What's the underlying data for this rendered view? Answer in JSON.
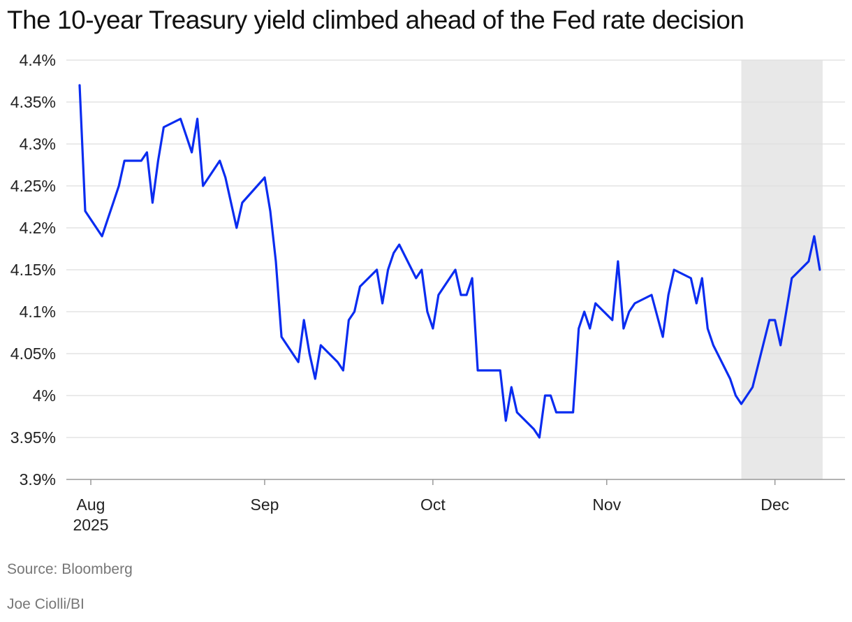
{
  "title": "The 10-year Treasury yield climbed ahead of the Fed rate decision",
  "source": "Source: Bloomberg",
  "credit": "Joe Ciolli/BI",
  "colors": {
    "line": "#0a2cf0",
    "grid": "#dddddd",
    "shade": "#e8e8e8",
    "axis": "#999999"
  },
  "chart_data": {
    "type": "line",
    "title": "The 10-year Treasury yield climbed ahead of the Fed rate decision",
    "xlabel": "",
    "ylabel": "",
    "ylim": [
      3.9,
      4.4
    ],
    "yticks": [
      3.9,
      3.95,
      4.0,
      4.05,
      4.1,
      4.15,
      4.2,
      4.25,
      4.3,
      4.35,
      4.4
    ],
    "ytick_labels": [
      "3.9%",
      "3.95%",
      "4%",
      "4.05%",
      "4.1%",
      "4.15%",
      "4.2%",
      "4.25%",
      "4.3%",
      "4.35%",
      "4.4%"
    ],
    "x_range": [
      "2025-07-31",
      "2025-12-12"
    ],
    "xticks": [
      {
        "date": "2025-08-01",
        "label": "Aug",
        "sublabel": "2025"
      },
      {
        "date": "2025-09-01",
        "label": "Sep",
        "sublabel": ""
      },
      {
        "date": "2025-10-01",
        "label": "Oct",
        "sublabel": ""
      },
      {
        "date": "2025-11-01",
        "label": "Nov",
        "sublabel": ""
      },
      {
        "date": "2025-12-01",
        "label": "Dec",
        "sublabel": ""
      }
    ],
    "shaded_region": [
      "2025-11-26",
      "2025-12-10"
    ],
    "grid": true,
    "series": [
      {
        "name": "10-year Treasury yield",
        "x": [
          "2025-07-31",
          "2025-08-01",
          "2025-08-04",
          "2025-08-05",
          "2025-08-06",
          "2025-08-07",
          "2025-08-08",
          "2025-08-11",
          "2025-08-12",
          "2025-08-13",
          "2025-08-14",
          "2025-08-15",
          "2025-08-18",
          "2025-08-19",
          "2025-08-20",
          "2025-08-21",
          "2025-08-22",
          "2025-08-25",
          "2025-08-26",
          "2025-08-27",
          "2025-08-28",
          "2025-08-29",
          "2025-09-02",
          "2025-09-03",
          "2025-09-04",
          "2025-09-05",
          "2025-09-08",
          "2025-09-09",
          "2025-09-10",
          "2025-09-11",
          "2025-09-12",
          "2025-09-15",
          "2025-09-16",
          "2025-09-17",
          "2025-09-18",
          "2025-09-19",
          "2025-09-22",
          "2025-09-23",
          "2025-09-24",
          "2025-09-25",
          "2025-09-26",
          "2025-09-29",
          "2025-09-30",
          "2025-10-01",
          "2025-10-02",
          "2025-10-03",
          "2025-10-06",
          "2025-10-07",
          "2025-10-08",
          "2025-10-09",
          "2025-10-10",
          "2025-10-14",
          "2025-10-15",
          "2025-10-16",
          "2025-10-17",
          "2025-10-20",
          "2025-10-21",
          "2025-10-22",
          "2025-10-23",
          "2025-10-24",
          "2025-10-27",
          "2025-10-28",
          "2025-10-29",
          "2025-10-30",
          "2025-10-31",
          "2025-11-03",
          "2025-11-04",
          "2025-11-05",
          "2025-11-06",
          "2025-11-07",
          "2025-11-10",
          "2025-11-12",
          "2025-11-13",
          "2025-11-14",
          "2025-11-17",
          "2025-11-18",
          "2025-11-19",
          "2025-11-20",
          "2025-11-21",
          "2025-11-24",
          "2025-11-25",
          "2025-11-26",
          "2025-11-28",
          "2025-12-01",
          "2025-12-02",
          "2025-12-03",
          "2025-12-04",
          "2025-12-05",
          "2025-12-08",
          "2025-12-09",
          "2025-12-10"
        ],
        "values": [
          4.37,
          4.22,
          4.19,
          4.21,
          4.23,
          4.25,
          4.28,
          4.28,
          4.29,
          4.23,
          4.28,
          4.32,
          4.33,
          4.31,
          4.29,
          4.33,
          4.25,
          4.28,
          4.26,
          4.23,
          4.2,
          4.23,
          4.26,
          4.22,
          4.16,
          4.07,
          4.04,
          4.09,
          4.05,
          4.02,
          4.06,
          4.04,
          4.03,
          4.09,
          4.1,
          4.13,
          4.15,
          4.11,
          4.15,
          4.17,
          4.18,
          4.14,
          4.15,
          4.1,
          4.08,
          4.12,
          4.15,
          4.12,
          4.12,
          4.14,
          4.03,
          4.03,
          3.97,
          4.01,
          3.98,
          3.96,
          3.95,
          4.0,
          4.0,
          3.98,
          3.98,
          4.08,
          4.1,
          4.08,
          4.11,
          4.09,
          4.16,
          4.08,
          4.1,
          4.11,
          4.12,
          4.07,
          4.12,
          4.15,
          4.14,
          4.11,
          4.14,
          4.08,
          4.06,
          4.02,
          4.0,
          3.99,
          4.01,
          4.09,
          4.09,
          4.06,
          4.1,
          4.14,
          4.16,
          4.19,
          4.15
        ]
      }
    ]
  }
}
